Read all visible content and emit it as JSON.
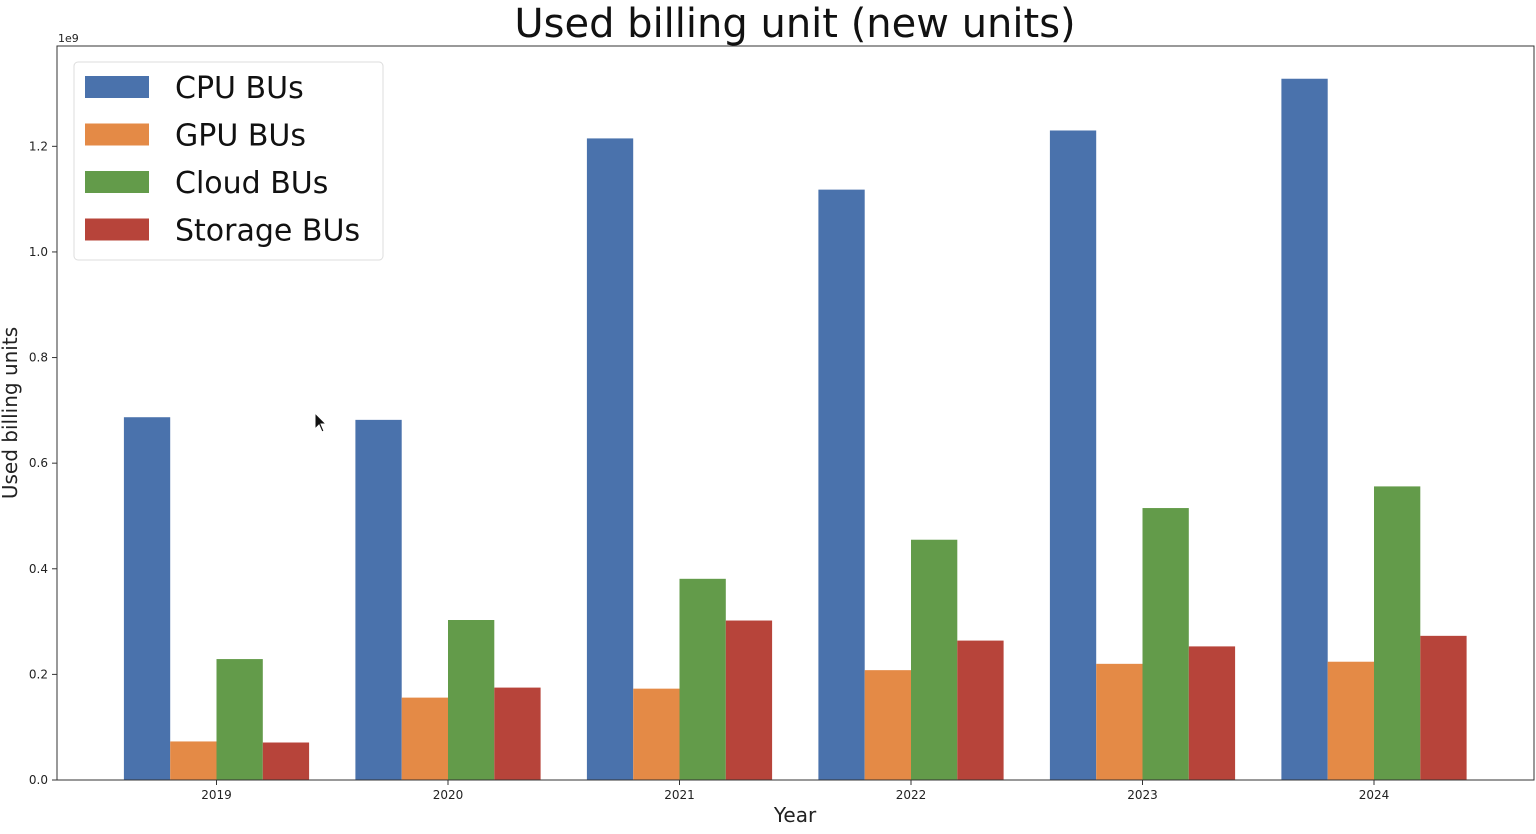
{
  "chart_data": {
    "type": "bar",
    "title": "Used billing unit (new units)",
    "xlabel": "Year",
    "ylabel": "Used billing units",
    "y_scale_label": "1e9",
    "y_multiplier": 1000000000,
    "ylim": [
      0,
      1.39
    ],
    "y_ticks": [
      0.0,
      0.2,
      0.4,
      0.6,
      0.8,
      1.0,
      1.2
    ],
    "y_tick_labels": [
      "0.0",
      "0.2",
      "0.4",
      "0.6",
      "0.8",
      "1.0",
      "1.2"
    ],
    "categories": [
      "2019",
      "2020",
      "2021",
      "2022",
      "2023",
      "2024"
    ],
    "series": [
      {
        "name": "CPU BUs",
        "color": "#4a72ac",
        "values": [
          0.687,
          0.682,
          1.215,
          1.118,
          1.23,
          1.328
        ]
      },
      {
        "name": "GPU BUs",
        "color": "#e48a46",
        "values": [
          0.073,
          0.156,
          0.173,
          0.208,
          0.22,
          0.224
        ]
      },
      {
        "name": "Cloud BUs",
        "color": "#639b4a",
        "values": [
          0.229,
          0.303,
          0.381,
          0.455,
          0.515,
          0.556
        ]
      },
      {
        "name": "Storage BUs",
        "color": "#b7443a",
        "values": [
          0.071,
          0.175,
          0.302,
          0.264,
          0.253,
          0.273
        ]
      }
    ],
    "legend_position": "top-left",
    "grid": false
  }
}
